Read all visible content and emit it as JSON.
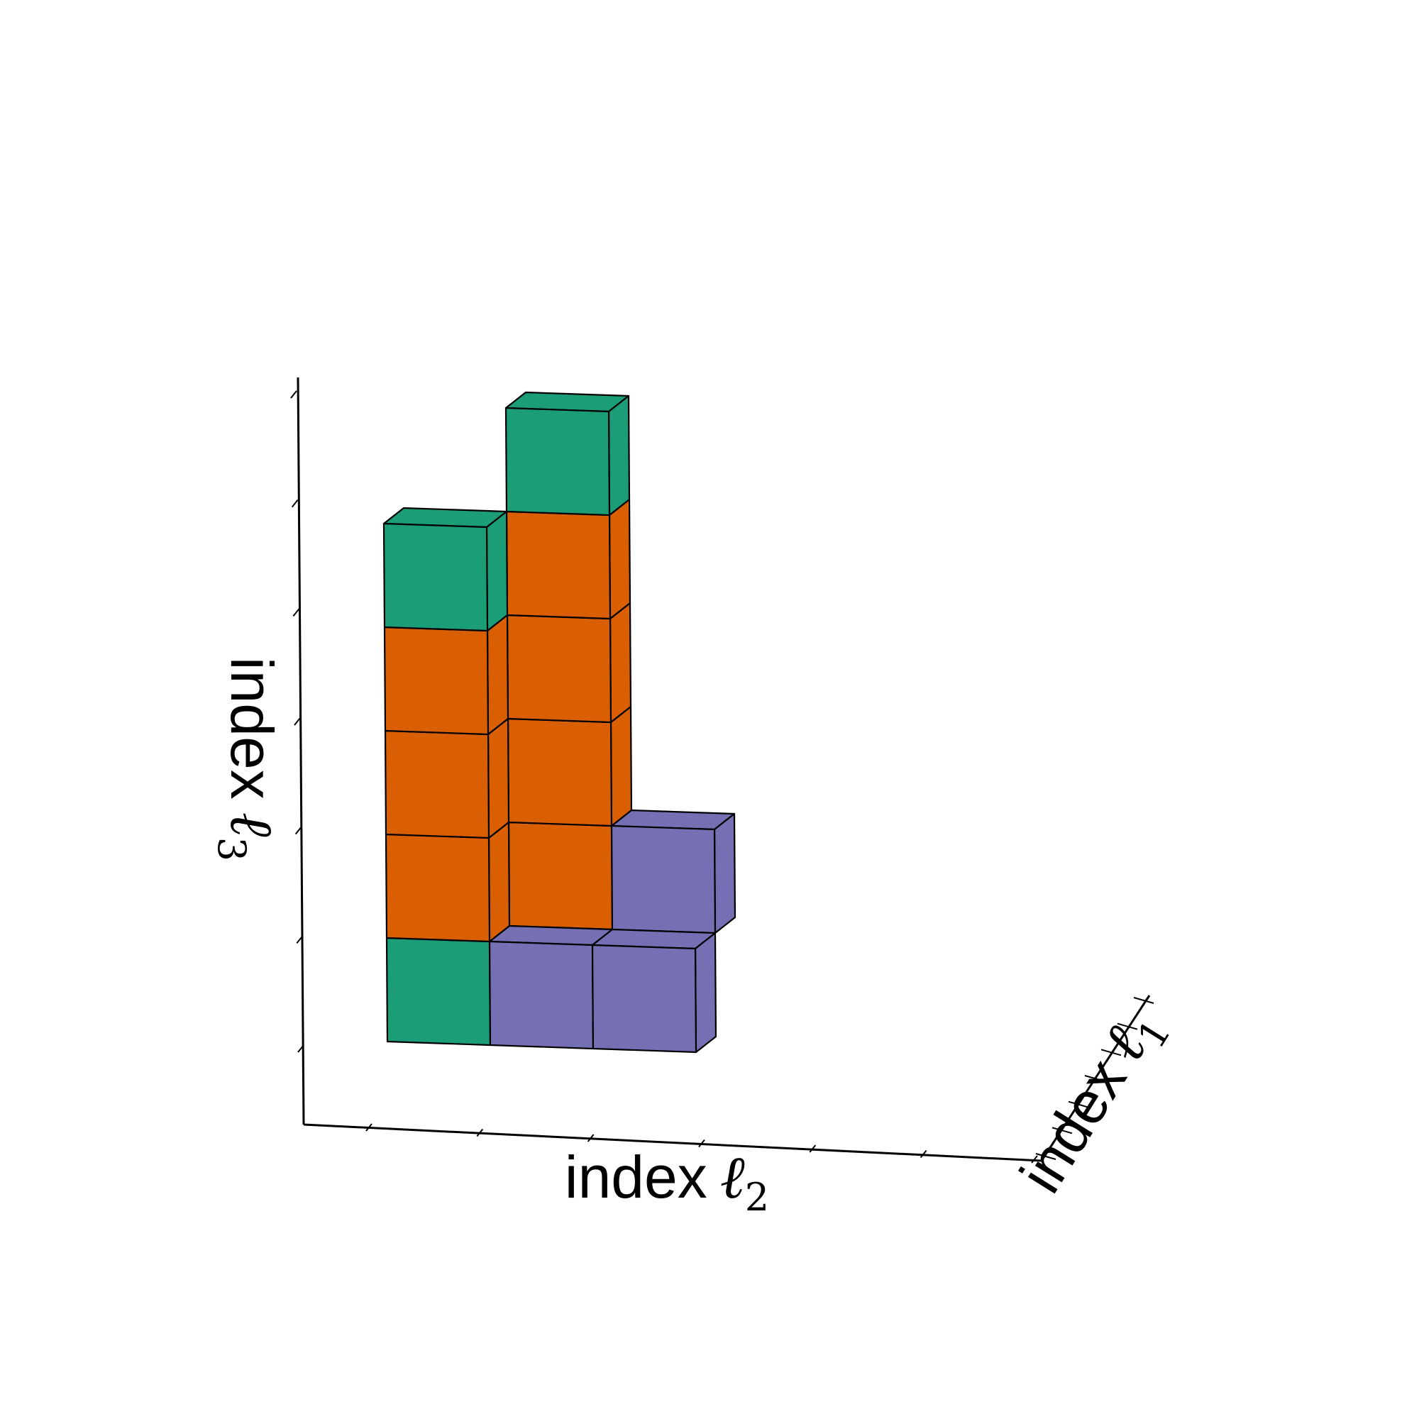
{
  "chart_data": {
    "type": "3d-voxel",
    "axes": {
      "x": {
        "word": "index",
        "symbol": "ℓ",
        "subscript": "2",
        "range": [
          0,
          6
        ],
        "ticks": [
          0,
          1,
          2,
          3,
          4,
          5,
          6
        ]
      },
      "y": {
        "word": "index",
        "symbol": "ℓ",
        "subscript": "1",
        "range": [
          0,
          6
        ],
        "ticks": [
          0,
          1,
          2,
          3,
          4,
          5,
          6
        ]
      },
      "z": {
        "word": "index",
        "symbol": "ℓ",
        "subscript": "3",
        "range": [
          0,
          6
        ],
        "ticks": [
          0,
          1,
          2,
          3,
          4,
          5,
          6
        ]
      }
    },
    "colors": {
      "green": "#1b9e77",
      "orange": "#d95f02",
      "purple": "#7570b3"
    },
    "series": [
      {
        "color": "green",
        "voxels": [
          [
            0,
            0,
            0
          ],
          [
            0,
            0,
            4
          ],
          [
            1,
            1,
            5
          ]
        ]
      },
      {
        "color": "orange",
        "voxels": [
          [
            1,
            1,
            0
          ],
          [
            0,
            0,
            1
          ],
          [
            0,
            0,
            2
          ],
          [
            0,
            0,
            3
          ],
          [
            1,
            1,
            1
          ],
          [
            1,
            1,
            2
          ],
          [
            1,
            1,
            3
          ],
          [
            1,
            1,
            4
          ]
        ]
      },
      {
        "color": "purple",
        "voxels": [
          [
            1,
            0,
            0
          ],
          [
            2,
            0,
            0
          ],
          [
            2,
            1,
            1
          ]
        ]
      }
    ],
    "grid": false,
    "legend": "none"
  }
}
